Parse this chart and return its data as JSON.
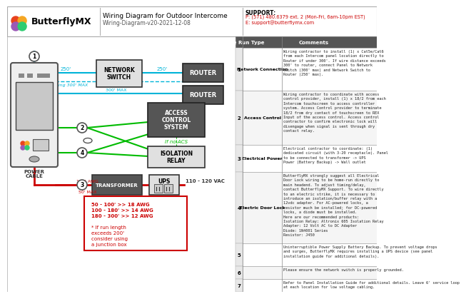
{
  "title": "Wiring Diagram for Outdoor Intercome",
  "subtitle": "Wiring-Diagram-v20-2021-12-08",
  "logo_text": "ButterflyMX",
  "support_line1": "SUPPORT:",
  "support_line2": "P: (571) 480.6379 ext. 2 (Mon-Fri, 6am-10pm EST)",
  "support_line3": "E: support@butterflymx.com",
  "bg_color": "#ffffff",
  "cyan": "#00b4d8",
  "green": "#00bb00",
  "red": "#cc0000",
  "dark_gray": "#404040",
  "rows": [
    {
      "num": "1",
      "type": "Network Connection",
      "comment": "Wiring contractor to install (1) x Cat5e/Cat6\nfrom each Intercom panel location directly to\nRouter if under 300'. If wire distance exceeds\n300' to router, connect Panel to Network\nSwitch (300' max) and Network Switch to\nRouter (250' max)."
    },
    {
      "num": "2",
      "type": "Access Control",
      "comment": "Wiring contractor to coordinate with access\ncontrol provider, install (1) x 18/2 from each\nIntercom touchscreen to access controller\nsystem. Access Control provider to terminate\n18/2 from dry contact of touchscreen to REX\nInput of the access control. Access control\ncontractor to confirm electronic lock will\ndisengage when signal is sent through dry\ncontact relay."
    },
    {
      "num": "3",
      "type": "Electrical Power",
      "comment": "Electrical contractor to coordinate: (1)\ndedicated circuit (with 3-20 receptacle). Panel\nto be connected to transformer -> UPS\nPower (Battery Backup) -> Wall outlet"
    },
    {
      "num": "4",
      "type": "Electric Door Lock",
      "comment": "ButterflyMX strongly suggest all Electrical\nDoor Lock wiring to be home-run directly to\nmain headend. To adjust timing/delay,\ncontact ButterflyMX Support. To wire directly\nto an electric strike, it is necessary to\nintroduce an isolation/buffer relay with a\n12vdc adapter. For AC-powered locks, a\nresistor much be installed; for DC-powered\nlocks, a diode must be installed.\nHere are our recommended products:\nIsolation Relay: Altronix 605 Isolation Relay\nAdapter: 12 Volt AC to DC Adapter\nDiode: 1N4001 Series\nResistor: J450"
    },
    {
      "num": "5",
      "type": "",
      "comment": "Uninterruptible Power Supply Battery Backup. To prevent voltage drops\nand surges, ButterflyMX requires installing a UPS device (see panel\ninstallation guide for additional details)."
    },
    {
      "num": "6",
      "type": "",
      "comment": "Please ensure the network switch is properly grounded."
    },
    {
      "num": "7",
      "type": "",
      "comment": "Refer to Panel Installation Guide for additional details. Leave 6' service loop\nat each location for low voltage cabling."
    }
  ]
}
